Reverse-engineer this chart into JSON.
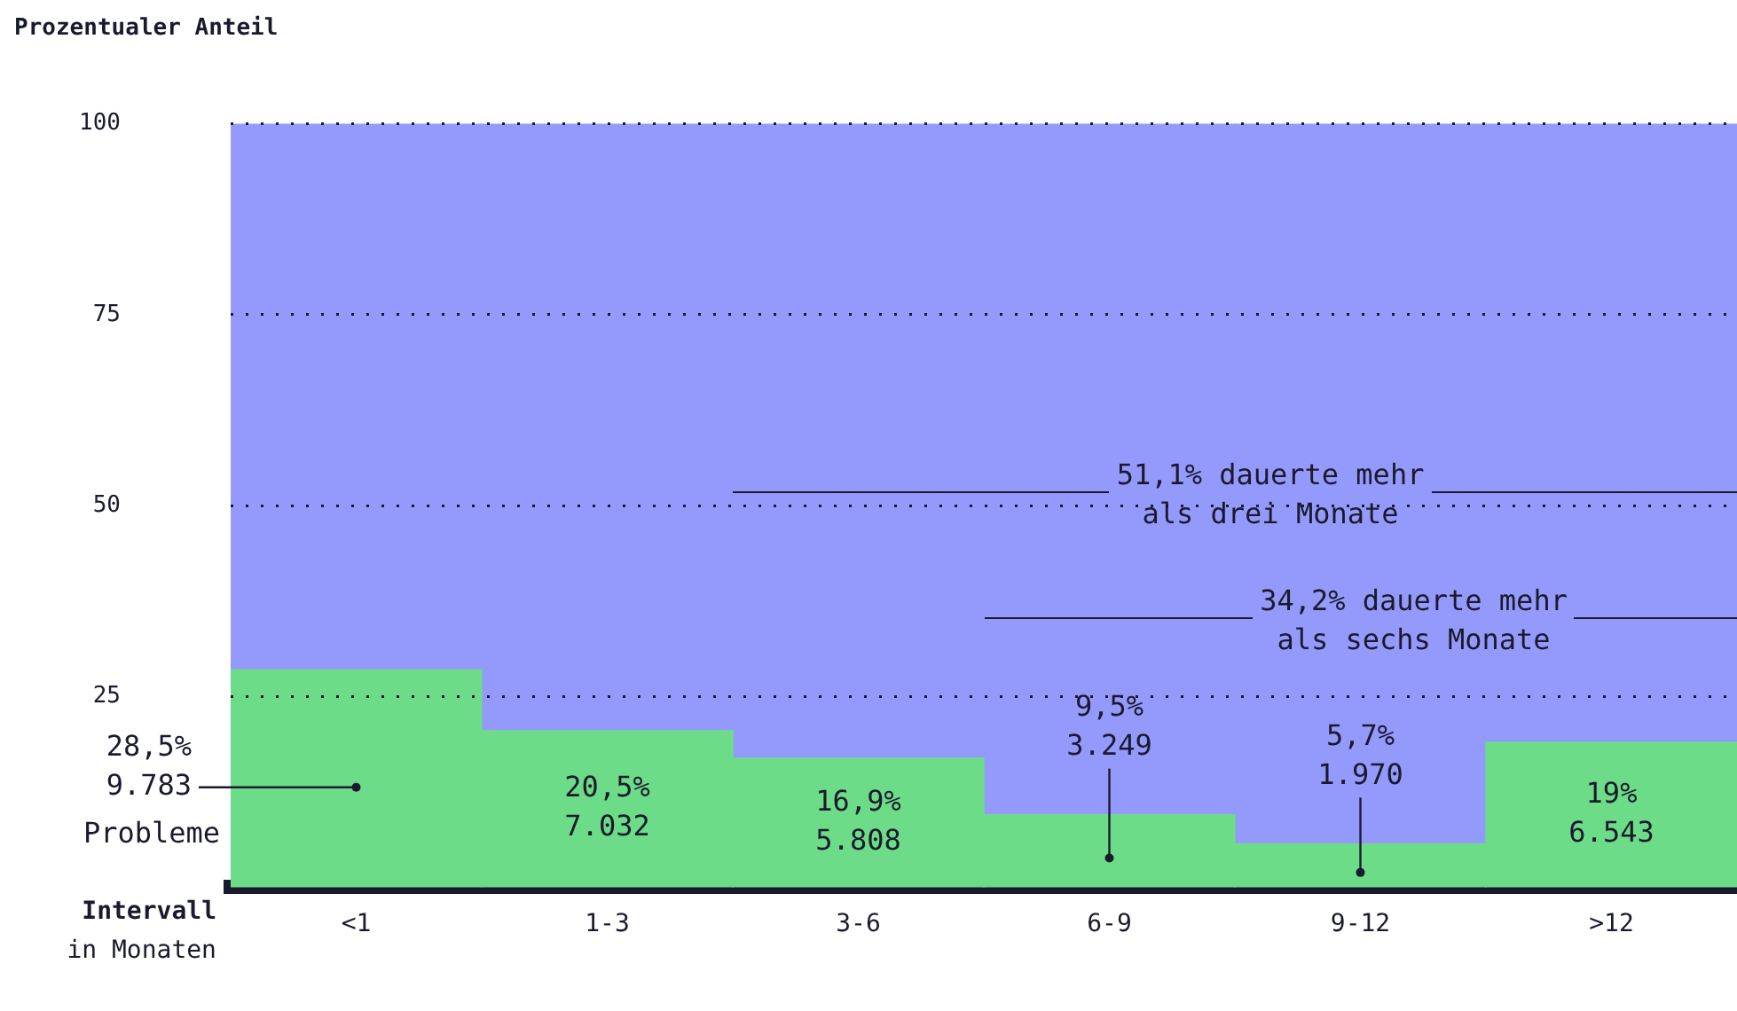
{
  "chart_data": {
    "type": "bar",
    "stacked": true,
    "ylabel": "Prozentualer Anteil",
    "xlabel": "Intervall\nin Monaten",
    "categories": [
      "<1",
      "1-3",
      "3-6",
      "6-9",
      "9-12",
      ">12"
    ],
    "series": [
      {
        "color": "#6ddc88",
        "values": [
          28.5,
          20.5,
          16.9,
          9.5,
          5.7,
          19
        ],
        "value_labels": [
          "28,5%\n9.783",
          "20,5%\n7.032",
          "16,9%\n5.808",
          "9,5%\n3.249",
          "5,7%\n1.970",
          "19%\n6.543"
        ]
      },
      {
        "color": "#949afb",
        "values": [
          71.5,
          79.5,
          83.1,
          90.5,
          94.3,
          81
        ]
      }
    ],
    "ylim": [
      0,
      100
    ],
    "yticks": [
      25,
      50,
      75,
      100
    ],
    "grid": "y",
    "legend": false,
    "annotations": [
      "51,1% dauerte mehr\nals drei Monate",
      "34,2% dauerte mehr\nals sechs Monate",
      "Probleme"
    ]
  }
}
